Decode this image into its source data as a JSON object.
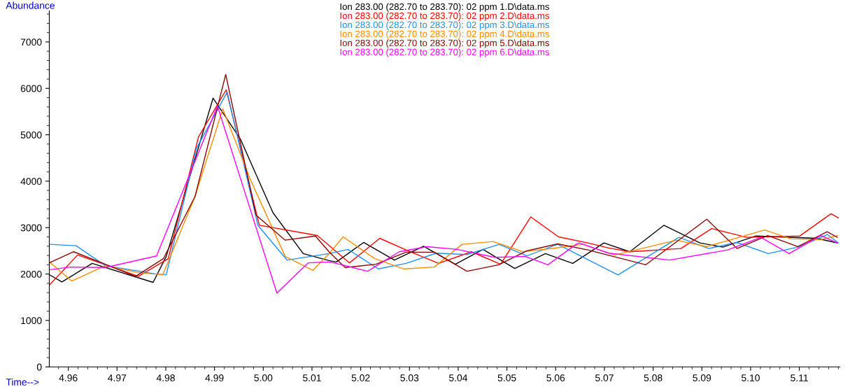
{
  "chart_data": {
    "type": "line",
    "xlabel": "Time-->",
    "ylabel": "Abundance",
    "xlim": [
      4.9561,
      5.1183
    ],
    "ylim": [
      0,
      7670
    ],
    "xticks": [
      4.96,
      4.97,
      4.98,
      4.99,
      {
        "value": 5.0,
        "label": "5.00"
      },
      5.01,
      5.02,
      5.03,
      5.04,
      5.05,
      5.06,
      5.07,
      5.08,
      5.09,
      {
        "value": 5.1,
        "label": "5.10"
      },
      5.11
    ],
    "yticks": [
      0,
      1000,
      2000,
      3000,
      4000,
      5000,
      6000,
      7000
    ],
    "grid": false,
    "legend": "top",
    "marker": "none",
    "line_style": "solid",
    "series": [
      {
        "name": "Ion 283.00 (282.70 to 283.70): 02 ppm 1.D\\data.ms",
        "color": "#000000",
        "x": [
          4.9561,
          4.9587,
          4.9649,
          4.9774,
          4.9801,
          4.9897,
          4.9953,
          5.002,
          5.0082,
          5.0135,
          5.015,
          5.0206,
          5.0269,
          5.0329,
          5.0394,
          5.0451,
          5.0516,
          5.0579,
          5.0635,
          5.0699,
          5.0752,
          5.0822,
          5.0896,
          5.0943,
          5.1011,
          5.1135,
          5.1178
        ],
        "values": [
          1985,
          1830,
          2230,
          1820,
          2380,
          5790,
          4910,
          3320,
          2440,
          2290,
          2260,
          2680,
          2300,
          2600,
          2210,
          2530,
          2120,
          2440,
          2230,
          2670,
          2480,
          3050,
          2670,
          2580,
          2820,
          2770,
          2670
        ]
      },
      {
        "name": "Ion 283.00 (282.70 to 283.70): 02 ppm 2.D\\data.ms",
        "color": "#ff0000",
        "x": [
          4.9561,
          4.9619,
          4.9744,
          4.9805,
          4.9867,
          4.9924,
          4.9992,
          5.0111,
          5.0177,
          5.0239,
          5.0297,
          5.036,
          5.0427,
          5.0487,
          5.0549,
          5.0606,
          5.0666,
          5.0709,
          5.0752,
          5.0857,
          5.092,
          5.0992,
          5.1101,
          5.1165,
          5.118
        ],
        "values": [
          1760,
          2410,
          1950,
          2330,
          4950,
          5970,
          3050,
          2830,
          2240,
          2770,
          2500,
          2230,
          2480,
          2210,
          3230,
          2800,
          2670,
          2560,
          2480,
          2550,
          2980,
          2790,
          2820,
          3300,
          3210
        ]
      },
      {
        "name": "Ion 283.00 (282.70 to 283.70): 02 ppm 3.D\\data.ms",
        "color": "#1e90ff",
        "x": [
          4.9561,
          4.9616,
          4.9676,
          4.9781,
          4.9801,
          4.9863,
          4.9926,
          4.9989,
          5.0049,
          5.0135,
          5.0174,
          5.0236,
          5.0293,
          5.0355,
          5.0418,
          5.0484,
          5.0541,
          5.0604,
          5.0728,
          5.0853,
          5.0914,
          5.0972,
          5.1036,
          5.1097,
          5.1158,
          5.118
        ],
        "values": [
          2640,
          2610,
          2180,
          2000,
          1985,
          4710,
          5920,
          3050,
          2300,
          2440,
          2530,
          2110,
          2230,
          2450,
          2420,
          2640,
          2390,
          2640,
          1980,
          2790,
          2550,
          2680,
          2440,
          2580,
          2850,
          2670
        ]
      },
      {
        "name": "Ion 283.00 (282.70 to 283.70): 02 ppm 4.D\\data.ms",
        "color": "#ff8c00",
        "x": [
          4.9561,
          4.9607,
          4.9676,
          4.9744,
          4.9794,
          4.986,
          4.9917,
          4.9973,
          5.0045,
          5.0102,
          5.0135,
          5.0164,
          5.0229,
          5.0289,
          5.0351,
          5.0408,
          5.0472,
          5.0533,
          5.0599,
          5.0656,
          5.0721,
          5.0848,
          5.091,
          5.1029,
          5.1082,
          5.1144,
          5.1178
        ],
        "values": [
          2260,
          1850,
          2180,
          2030,
          1985,
          3670,
          5560,
          4050,
          2380,
          2080,
          2440,
          2800,
          2330,
          2110,
          2150,
          2640,
          2700,
          2480,
          2560,
          2640,
          2410,
          2730,
          2590,
          2950,
          2760,
          2740,
          2830
        ]
      },
      {
        "name": "Ion 283.00 (282.70 to 283.70): 02 ppm 5.D\\data.ms",
        "color": "#8b0000",
        "x": [
          4.9561,
          4.9611,
          4.9676,
          4.9738,
          4.9795,
          4.986,
          4.9923,
          4.9985,
          5.0045,
          5.0107,
          5.0135,
          5.0168,
          5.0231,
          5.0293,
          5.0351,
          5.0418,
          5.0483,
          5.0541,
          5.0604,
          5.0666,
          5.0785,
          5.091,
          5.0972,
          5.1035,
          5.1097,
          5.1157,
          5.1178
        ],
        "values": [
          2240,
          2480,
          2210,
          1950,
          2330,
          3670,
          6300,
          3270,
          2730,
          2820,
          2480,
          2140,
          2210,
          2470,
          2470,
          2060,
          2200,
          2500,
          2650,
          2520,
          2200,
          3180,
          2550,
          2830,
          2590,
          2910,
          2790
        ]
      },
      {
        "name": "Ion 283.00 (282.70 to 283.70): 02 ppm 6.D\\data.ms",
        "color": "#ff00ff",
        "x": [
          4.9561,
          4.9604,
          4.9676,
          4.9781,
          4.9906,
          5.0028,
          5.0092,
          5.0135,
          5.015,
          5.0214,
          5.0279,
          5.0336,
          5.0398,
          5.0475,
          5.0537,
          5.0584,
          5.0642,
          5.0648,
          5.0709,
          5.0834,
          5.0953,
          5.1021,
          5.1079,
          5.1144,
          5.1178
        ],
        "values": [
          2090,
          2150,
          2140,
          2390,
          5620,
          1590,
          2240,
          2260,
          2230,
          2060,
          2480,
          2590,
          2530,
          2360,
          2380,
          2200,
          2640,
          2670,
          2450,
          2300,
          2520,
          2790,
          2440,
          2830,
          2670
        ]
      }
    ]
  }
}
